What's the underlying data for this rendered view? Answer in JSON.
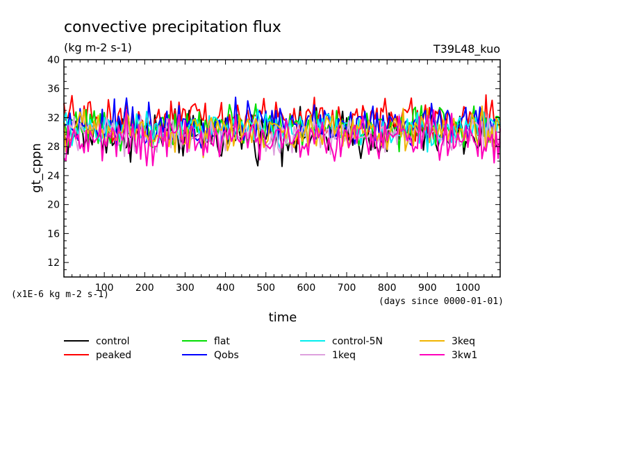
{
  "chart_data": {
    "type": "line",
    "title": "convective precipitation flux",
    "subtitle": "(kg m-2 s-1)",
    "experiment_label": "T39L48_kuo",
    "xlabel": "time",
    "x_unit_label": "(days since 0000-01-01)",
    "ylabel": "gt_cppn",
    "y_scale_label": "(x1E-6 kg m-2 s-1)",
    "xlim": [
      0,
      1080
    ],
    "ylim": [
      10,
      40
    ],
    "x_ticks": [
      100,
      200,
      300,
      400,
      500,
      600,
      700,
      800,
      900,
      1000
    ],
    "y_ticks": [
      12,
      16,
      20,
      24,
      28,
      32,
      36,
      40
    ],
    "x_step": 5,
    "grid": false,
    "legend_position": "bottom",
    "series": [
      {
        "name": "control",
        "color": "#000000",
        "mean": 29.6,
        "amplitude": 1.6
      },
      {
        "name": "peaked",
        "color": "#ff0000",
        "mean": 31.8,
        "amplitude": 1.5
      },
      {
        "name": "flat",
        "color": "#00dd00",
        "mean": 30.6,
        "amplitude": 1.3
      },
      {
        "name": "Qobs",
        "color": "#0000ff",
        "mean": 31.2,
        "amplitude": 1.4
      },
      {
        "name": "control-5N",
        "color": "#00eeee",
        "mean": 30.4,
        "amplitude": 1.2
      },
      {
        "name": "1keq",
        "color": "#dda0dd",
        "mean": 29.6,
        "amplitude": 1.3
      },
      {
        "name": "3keq",
        "color": "#f0b400",
        "mean": 30.0,
        "amplitude": 1.3
      },
      {
        "name": "3kw1",
        "color": "#ff00bb",
        "mean": 29.2,
        "amplitude": 1.5
      }
    ]
  }
}
